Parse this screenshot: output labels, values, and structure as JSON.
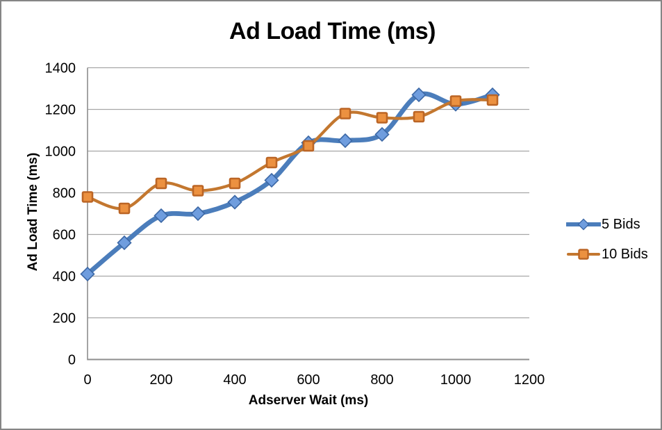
{
  "chart": {
    "title": "Ad Load Time (ms)",
    "x_axis_title": "Adserver Wait (ms)",
    "y_axis_title": "Ad Load Time (ms)"
  },
  "legend": {
    "items": [
      {
        "label": "5 Bids"
      },
      {
        "label": "10 Bids"
      }
    ]
  },
  "colors": {
    "background": "#ffffff",
    "frame_border": "#858585",
    "gridline": "#a6a6a6",
    "axis": "#8e8e8e",
    "text": "#000000",
    "series1_line": "#4b7dbb",
    "series1_marker_fill": "#6f9dde",
    "series1_marker_stroke": "#3c68a6",
    "series2_line": "#c3772f",
    "series2_marker_fill": "#ec9140",
    "series2_marker_stroke": "#bb6525"
  },
  "chart_data": {
    "type": "line",
    "title": "Ad Load Time (ms)",
    "xlabel": "Adserver Wait (ms)",
    "ylabel": "Ad Load Time (ms)",
    "xlim": [
      0,
      1200
    ],
    "ylim": [
      0,
      1400
    ],
    "x_ticks": [
      0,
      200,
      400,
      600,
      800,
      1000,
      1200
    ],
    "y_ticks": [
      0,
      200,
      400,
      600,
      800,
      1000,
      1200,
      1400
    ],
    "grid": true,
    "smoothed": true,
    "legend_position": "right",
    "x": [
      0,
      100,
      200,
      300,
      400,
      500,
      600,
      700,
      800,
      900,
      1000,
      1100
    ],
    "series": [
      {
        "name": "5 Bids",
        "marker": "diamond",
        "line_color": "#4b7dbb",
        "marker_fill": "#6f9dde",
        "marker_stroke": "#3c68a6",
        "values": [
          410,
          560,
          690,
          700,
          755,
          860,
          1040,
          1050,
          1080,
          1270,
          1225,
          1270
        ]
      },
      {
        "name": "10 Bids",
        "marker": "square",
        "line_color": "#c3772f",
        "marker_fill": "#ec9140",
        "marker_stroke": "#bb6525",
        "values": [
          780,
          725,
          845,
          810,
          845,
          945,
          1025,
          1180,
          1160,
          1165,
          1240,
          1245
        ]
      }
    ]
  }
}
